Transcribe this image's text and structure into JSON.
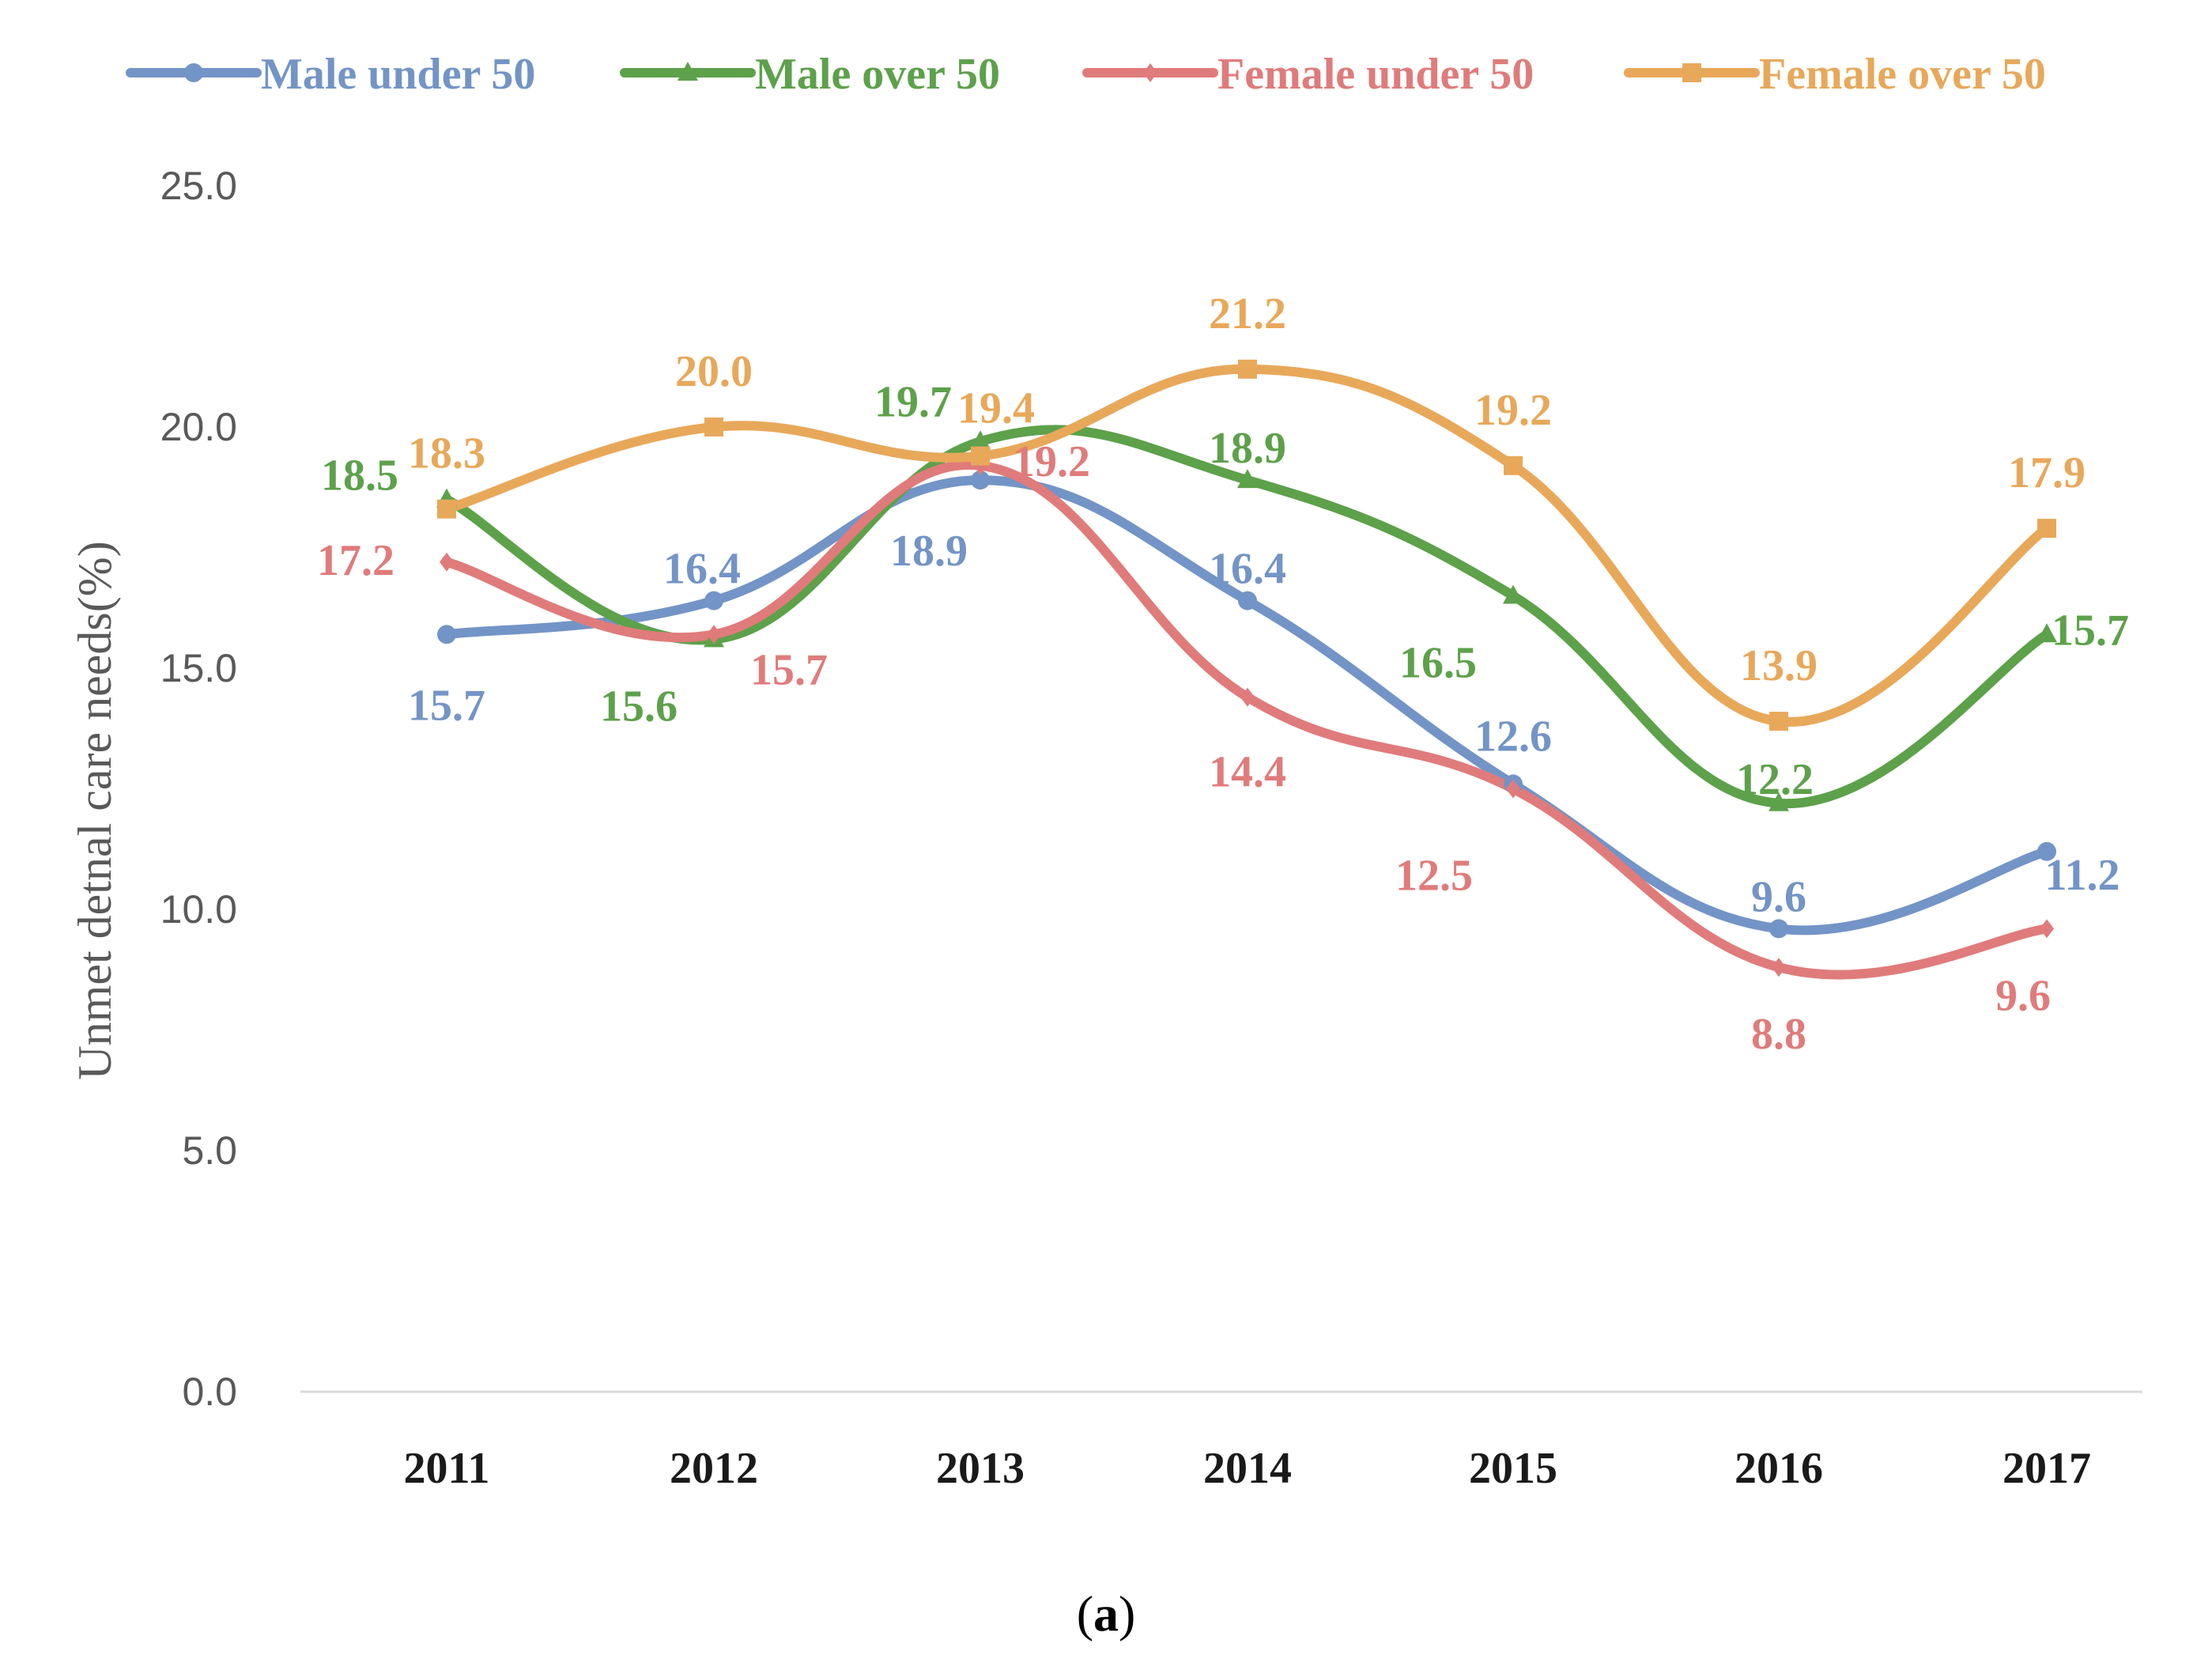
{
  "chart_data": {
    "type": "line",
    "title": "",
    "xlabel": "",
    "ylabel": "Unmet detnal care needs(%)",
    "categories": [
      "2011",
      "2012",
      "2013",
      "2014",
      "2015",
      "2016",
      "2017"
    ],
    "ylim": [
      0,
      25
    ],
    "yticks": [
      "0.0",
      "5.0",
      "10.0",
      "15.0",
      "20.0",
      "25.0"
    ],
    "legend_position": "top",
    "grid": false,
    "series": [
      {
        "name": "Male under 50",
        "color": "#7394C6",
        "marker": "circle",
        "values": [
          15.7,
          16.4,
          18.9,
          16.4,
          12.6,
          9.6,
          11.2
        ],
        "labels": [
          "15.7",
          "16.4",
          "18.9",
          "16.4",
          "12.6",
          "9.6",
          "11.2"
        ]
      },
      {
        "name": "Male over 50",
        "color": "#5DA14A",
        "marker": "triangle",
        "values": [
          18.5,
          15.6,
          19.7,
          18.9,
          16.5,
          12.2,
          15.7
        ],
        "labels": [
          "18.5",
          "15.6",
          "19.7",
          "18.9",
          "16.5",
          "12.2",
          "15.7"
        ]
      },
      {
        "name": "Female under 50",
        "color": "#E07B7B",
        "marker": "diamond",
        "values": [
          17.2,
          15.7,
          19.2,
          14.4,
          12.5,
          8.8,
          9.6
        ],
        "labels": [
          "17.2",
          "15.7",
          "19.2",
          "14.4",
          "12.5",
          "8.8",
          "9.6"
        ]
      },
      {
        "name": "Female over 50",
        "color": "#E8A85A",
        "marker": "square",
        "values": [
          18.3,
          20.0,
          19.4,
          21.2,
          19.2,
          13.9,
          17.9
        ],
        "labels": [
          "18.3",
          "20.0",
          "19.4",
          "21.2",
          "19.2",
          "13.9",
          "17.9"
        ]
      }
    ]
  },
  "caption": {
    "open": "(",
    "letter": "a",
    "close": ")"
  }
}
